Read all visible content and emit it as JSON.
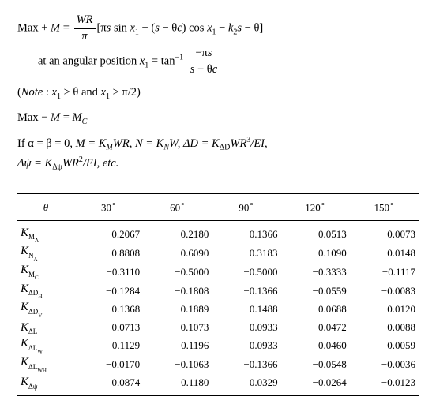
{
  "eq": {
    "line1_lhs_a": "Max",
    "line1_lhs_plus": " + ",
    "line1_lhs_b": "M",
    "line1_eq": " = ",
    "line1_frac_num": "WR",
    "line1_frac_den": "π",
    "line1_rest_a": "[π",
    "line1_rest_b": "s",
    "line1_rest_c": " sin ",
    "line1_rest_d": "x",
    "line1_rest_d_sub": "1",
    "line1_rest_e": " − (",
    "line1_rest_f": "s",
    "line1_rest_g": " − θ",
    "line1_rest_h": "c",
    "line1_rest_i": ") cos ",
    "line1_rest_j": "x",
    "line1_rest_j_sub": "1",
    "line1_rest_k": " − ",
    "line1_rest_l": "k",
    "line1_rest_l_sub": "2",
    "line1_rest_m": "s",
    "line1_rest_n": " − θ]",
    "line2_a": "at an angular position ",
    "line2_b": "x",
    "line2_b_sub": "1",
    "line2_c": " = tan",
    "line2_sup": "−1",
    "line2_frac_num": "−π s",
    "line2_frac_den_a": "s",
    "line2_frac_den_b": " − θ",
    "line2_frac_den_c": "c"
  },
  "note_open": "(",
  "note_label": "Note",
  "note_text_a": " : ",
  "note_x": "x",
  "note_x_sub": "1",
  "note_gt": " > θ  and  ",
  "note_x2": "x",
  "note_x2_sub": "1",
  "note_tail": " > π/2)",
  "maxM_a": "Max − ",
  "maxM_b": "M",
  "maxM_c": " = ",
  "maxM_d": "M",
  "maxM_d_sub": "C",
  "if_line_a": "If α = β = 0, ",
  "if_line_b": "M = K",
  "if_line_b_sub": "M",
  "if_line_c": "WR,  N = K",
  "if_line_c_sub": "N",
  "if_line_d": "W,  ΔD = K",
  "if_line_d_sub": "ΔD",
  "if_line_e": "WR",
  "if_line_e_sup": "3",
  "if_line_f": "/EI,",
  "psi_a": "Δψ = K",
  "psi_a_sub": "Δψ",
  "psi_b": "WR",
  "psi_b_sup": "2",
  "psi_c": "/EI,  etc.",
  "table": {
    "header": {
      "theta": "θ",
      "cols": [
        "30",
        "60",
        "90",
        "120",
        "150"
      ],
      "deg": "∘"
    },
    "rows": [
      {
        "base": "K",
        "sub": "M",
        "subsub": "A",
        "v": [
          "−0.2067",
          "−0.2180",
          "−0.1366",
          "−0.0513",
          "−0.0073"
        ]
      },
      {
        "base": "K",
        "sub": "N",
        "subsub": "A",
        "v": [
          "−0.8808",
          "−0.6090",
          "−0.3183",
          "−0.1090",
          "−0.0148"
        ]
      },
      {
        "base": "K",
        "sub": "M",
        "subsub": "C",
        "v": [
          "−0.3110",
          "−0.5000",
          "−0.5000",
          "−0.3333",
          "−0.1117"
        ]
      },
      {
        "base": "K",
        "sub": "ΔD",
        "subsub": "H",
        "v": [
          "−0.1284",
          "−0.1808",
          "−0.1366",
          "−0.0559",
          "−0.0083"
        ]
      },
      {
        "base": "K",
        "sub": "ΔD",
        "subsub": "V",
        "v": [
          "0.1368",
          "0.1889",
          "0.1488",
          "0.0688",
          "0.0120"
        ]
      },
      {
        "base": "K",
        "sub": "ΔL",
        "subsub": "",
        "v": [
          "0.0713",
          "0.1073",
          "0.0933",
          "0.0472",
          "0.0088"
        ]
      },
      {
        "base": "K",
        "sub": "ΔL",
        "subsub": "W",
        "v": [
          "0.1129",
          "0.1196",
          "0.0933",
          "0.0460",
          "0.0059"
        ]
      },
      {
        "base": "K",
        "sub": "ΔL",
        "subsub": "WH",
        "v": [
          "−0.0170",
          "−0.1063",
          "−0.1366",
          "−0.0548",
          "−0.0036"
        ]
      },
      {
        "base": "K",
        "sub": "Δψ",
        "subsub": "",
        "v": [
          "0.0874",
          "0.1180",
          "0.0329",
          "−0.0264",
          "−0.0123"
        ]
      }
    ]
  },
  "colors": {
    "text": "#000000",
    "bg": "#ffffff",
    "rule": "#000000"
  },
  "fonts": {
    "body_pt": 14.5,
    "table_pt": 13
  }
}
